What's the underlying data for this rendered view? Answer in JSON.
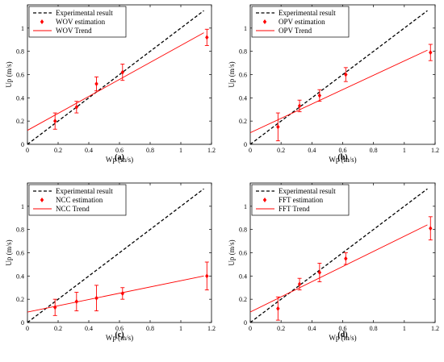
{
  "chart_data": [
    {
      "type": "scatter",
      "caption": "(a)",
      "xlabel": "Wp (m/s)",
      "ylabel": "Up (m/s)",
      "xlim": [
        0,
        1.2
      ],
      "ylim": [
        0,
        1.2
      ],
      "xticks": [
        "0",
        "0.2",
        "0.4",
        "0.6",
        "0.8",
        "1",
        "1.2"
      ],
      "yticks": [
        "0",
        "0.2",
        "0.4",
        "0.6",
        "0.8",
        "1"
      ],
      "legend_position": "top-left",
      "series": [
        {
          "name": "Experimental result",
          "kind": "reference-line",
          "color": "#000000",
          "x": [
            0,
            1.15
          ],
          "y": [
            0,
            1.15
          ]
        },
        {
          "name": "WOV estimation",
          "kind": "errorbar",
          "color": "#ff0000",
          "x": [
            0.18,
            0.32,
            0.45,
            0.62,
            1.17
          ],
          "y": [
            0.2,
            0.32,
            0.52,
            0.62,
            0.92
          ],
          "err": [
            0.07,
            0.05,
            0.06,
            0.07,
            0.07
          ]
        },
        {
          "name": "WOV Trend",
          "kind": "trend-line",
          "color": "#ff0000",
          "x": [
            0,
            1.15
          ],
          "y": [
            0.12,
            0.96
          ]
        }
      ]
    },
    {
      "type": "scatter",
      "caption": "(b)",
      "xlabel": "Wp (m/s)",
      "ylabel": "Up (m/s)",
      "xlim": [
        0,
        1.2
      ],
      "ylim": [
        0,
        1.2
      ],
      "xticks": [
        "0",
        "0.2",
        "0.4",
        "0.6",
        "0.8",
        "1",
        "1.2"
      ],
      "yticks": [
        "0",
        "0.2",
        "0.4",
        "0.6",
        "0.8",
        "1"
      ],
      "legend_position": "top-left",
      "series": [
        {
          "name": "Experimental result",
          "kind": "reference-line",
          "color": "#000000",
          "x": [
            0,
            1.15
          ],
          "y": [
            0,
            1.15
          ]
        },
        {
          "name": "OPV estimation",
          "kind": "errorbar",
          "color": "#ff0000",
          "x": [
            0.18,
            0.32,
            0.45,
            0.62,
            1.17
          ],
          "y": [
            0.15,
            0.33,
            0.42,
            0.6,
            0.79
          ],
          "err": [
            0.12,
            0.05,
            0.05,
            0.06,
            0.07
          ]
        },
        {
          "name": "OPV Trend",
          "kind": "trend-line",
          "color": "#ff0000",
          "x": [
            0,
            1.15
          ],
          "y": [
            0.1,
            0.81
          ]
        }
      ]
    },
    {
      "type": "scatter",
      "caption": "(c)",
      "xlabel": "Wp (m/s)",
      "ylabel": "Up (m/s)",
      "xlim": [
        0,
        1.2
      ],
      "ylim": [
        0,
        1.2
      ],
      "xticks": [
        "0",
        "0.2",
        "0.4",
        "0.6",
        "0.8",
        "1",
        "1.2"
      ],
      "yticks": [
        "0",
        "0.2",
        "0.4",
        "0.6",
        "0.8",
        "1"
      ],
      "legend_position": "top-left",
      "series": [
        {
          "name": "Experimental result",
          "kind": "reference-line",
          "color": "#000000",
          "x": [
            0,
            1.15
          ],
          "y": [
            0,
            1.15
          ]
        },
        {
          "name": "NCC estimation",
          "kind": "errorbar",
          "color": "#ff0000",
          "x": [
            0.18,
            0.32,
            0.45,
            0.62,
            1.17
          ],
          "y": [
            0.13,
            0.18,
            0.21,
            0.25,
            0.4
          ],
          "err": [
            0.07,
            0.08,
            0.11,
            0.05,
            0.12
          ]
        },
        {
          "name": "NCC Trend",
          "kind": "trend-line",
          "color": "#ff0000",
          "x": [
            0,
            1.15
          ],
          "y": [
            0.09,
            0.4
          ]
        }
      ]
    },
    {
      "type": "scatter",
      "caption": "(d)",
      "xlabel": "Wp (m/s)",
      "ylabel": "Up (m/s)",
      "xlim": [
        0,
        1.2
      ],
      "ylim": [
        0,
        1.2
      ],
      "xticks": [
        "0",
        "0.2",
        "0.4",
        "0.6",
        "0.8",
        "1",
        "1.2"
      ],
      "yticks": [
        "0",
        "0.2",
        "0.4",
        "0.6",
        "0.8",
        "1"
      ],
      "legend_position": "top-left",
      "series": [
        {
          "name": "Experimental result",
          "kind": "reference-line",
          "color": "#000000",
          "x": [
            0,
            1.15
          ],
          "y": [
            0,
            1.15
          ]
        },
        {
          "name": "FFT estimation",
          "kind": "errorbar",
          "color": "#ff0000",
          "x": [
            0.18,
            0.32,
            0.45,
            0.62,
            1.17
          ],
          "y": [
            0.12,
            0.33,
            0.43,
            0.55,
            0.81
          ],
          "err": [
            0.1,
            0.05,
            0.08,
            0.05,
            0.1
          ]
        },
        {
          "name": "FFT Trend",
          "kind": "trend-line",
          "color": "#ff0000",
          "x": [
            0,
            1.15
          ],
          "y": [
            0.09,
            0.84
          ]
        }
      ]
    }
  ]
}
